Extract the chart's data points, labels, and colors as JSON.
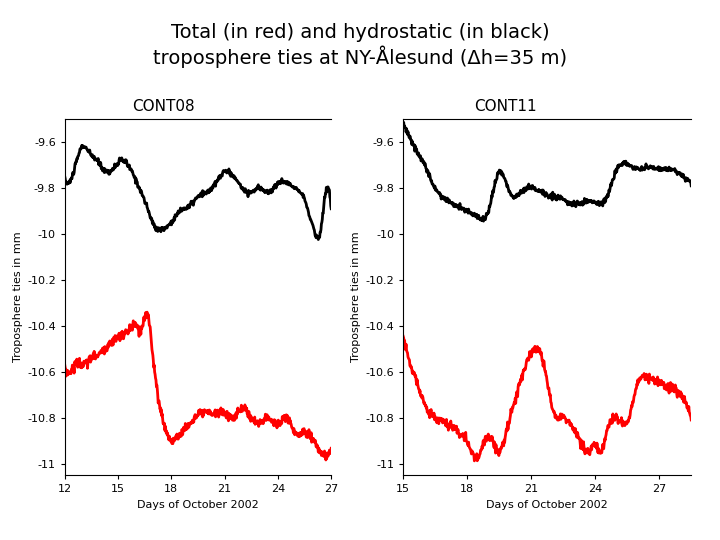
{
  "title": "Total (in red) and hydrostatic (in black)\ntroposphere ties at NY-Ålesund (Δh=35 m)",
  "title_bg": "#ccc8e8",
  "panel1_label": "CONT08",
  "panel2_label": "CONT11",
  "label_bg": "#ccc8e8",
  "ylabel": "Troposphere ties in mm",
  "xlabel": "Days of October 2002",
  "panel1_xlim": [
    12,
    27
  ],
  "panel2_xlim": [
    15,
    28.5
  ],
  "ylim": [
    -11.05,
    -9.5
  ],
  "yticks": [
    -11.0,
    -10.8,
    -10.6,
    -10.4,
    -10.2,
    -10.0,
    -9.8,
    -9.6
  ],
  "ytick_labels": [
    "-11",
    "-10.8",
    "-10.6",
    "-10.4",
    "-10.2",
    "-10",
    "-9.8",
    "-9.6"
  ],
  "panel1_xticks": [
    12,
    15,
    18,
    21,
    24,
    27
  ],
  "panel2_xticks": [
    15,
    18,
    21,
    24,
    27
  ],
  "line_width": 2.0,
  "fig_bg": "#ffffff",
  "overall_bg": "#ffffff"
}
